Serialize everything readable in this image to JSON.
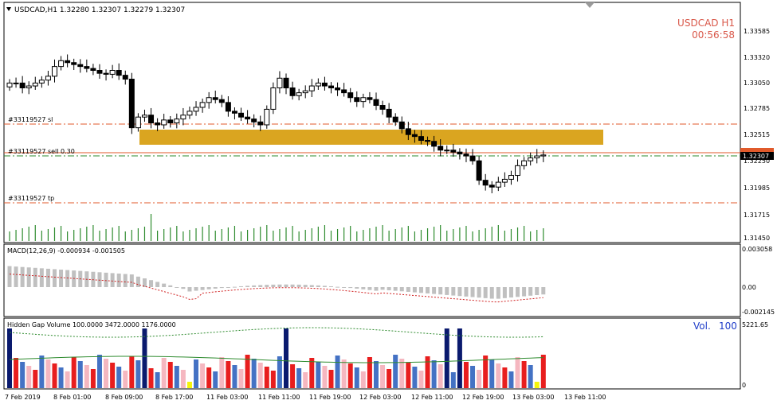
{
  "header": {
    "symbol_info": "USDCAD,H1  1.32280 1.32307 1.32279 1.32307",
    "corner_symbol": "USDCAD  H1",
    "corner_timer": "00:56:58"
  },
  "price_panel": {
    "axis_ticks": [
      "1.33585",
      "1.33320",
      "1.33050",
      "1.32785",
      "1.32515",
      "1.32250",
      "1.31985",
      "1.31715",
      "1.31450"
    ],
    "current_price_label": "1.32307",
    "trade_lines": {
      "sl_label": "#33119527 sl",
      "sell_label": "#33119527 sell 0.30",
      "tp_label": "#33119527 tp"
    }
  },
  "macd_panel": {
    "label": "MACD(12,26,9) -0.000934 -0.001505",
    "axis_ticks": [
      "0.003058",
      "0.00",
      "-0.002145"
    ]
  },
  "volume_panel": {
    "label": "Hidden Gap Volume 100.0000 3472.0000 1176.0000",
    "vol_label": "Vol.",
    "vol_value": "100",
    "axis_ticks": [
      "5221.65",
      "0"
    ]
  },
  "time_axis": {
    "labels": [
      "7 Feb 2019",
      "8 Feb 01:00",
      "8 Feb 09:00",
      "8 Feb 17:00",
      "11 Feb 03:00",
      "11 Feb 11:00",
      "11 Feb 19:00",
      "12 Feb 03:00",
      "12 Feb 11:00",
      "12 Feb 19:00",
      "13 Feb 03:00",
      "13 Feb 11:00"
    ]
  },
  "colors": {
    "zone": "#DAA520",
    "trade_line": "#E05A2B",
    "green_dash": "#2E8B2E",
    "macd_hist": "#C0C0C0",
    "macd_signal": "#D02020",
    "vol_blue": "#4472C4",
    "vol_red": "#E81E1E",
    "vol_pink": "#F5B7C0",
    "vol_navy": "#0A1A6E",
    "vol_yellow": "#F4F40A",
    "vol_label": "#1E3CC8",
    "corner_text": "#D9584A"
  },
  "chart_data": {
    "type": "candlestick",
    "close_series": [
      1.3305,
      1.3305,
      1.33,
      1.3302,
      1.3305,
      1.3308,
      1.3312,
      1.3322,
      1.3328,
      1.3326,
      1.3324,
      1.3322,
      1.332,
      1.3318,
      1.3315,
      1.3314,
      1.3318,
      1.3313,
      1.3309,
      1.3259,
      1.327,
      1.3272,
      1.3264,
      1.3262,
      1.3267,
      1.3264,
      1.3268,
      1.3272,
      1.3276,
      1.328,
      1.3285,
      1.329,
      1.3288,
      1.3285,
      1.3276,
      1.3274,
      1.327,
      1.3268,
      1.3265,
      1.3262,
      1.3278,
      1.33,
      1.331,
      1.33,
      1.3292,
      1.3295,
      1.3297,
      1.3302,
      1.3305,
      1.3302,
      1.33,
      1.3298,
      1.3295,
      1.329,
      1.3286,
      1.329,
      1.3288,
      1.3282,
      1.3278,
      1.327,
      1.3265,
      1.3258,
      1.3252,
      1.325,
      1.3246,
      1.3245,
      1.324,
      1.3236,
      1.3236,
      1.3234,
      1.3232,
      1.323,
      1.3225,
      1.3205,
      1.32,
      1.3198,
      1.3203,
      1.3206,
      1.321,
      1.322,
      1.3225,
      1.3228,
      1.323,
      1.3231
    ]
  }
}
